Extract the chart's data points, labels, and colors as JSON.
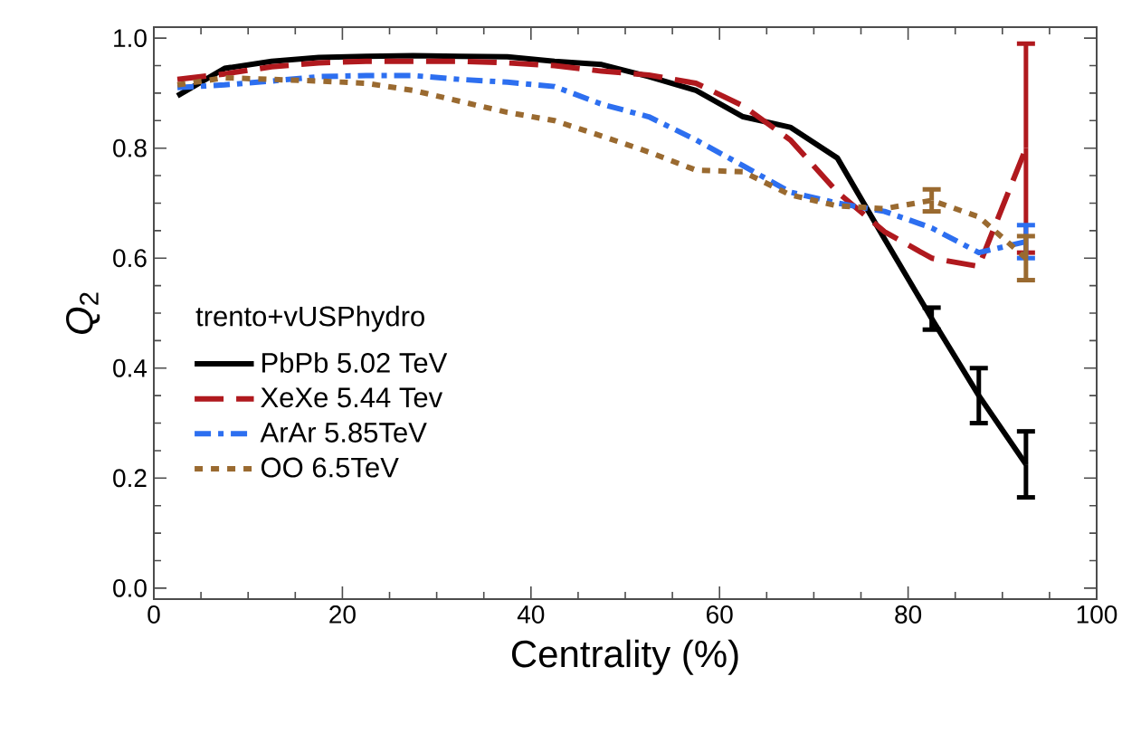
{
  "chart_data": {
    "type": "line",
    "xlabel": "Centrality (%)",
    "ylabel": "*Q*$_{2}$",
    "legend_title": "trento+vUSPhydro",
    "x": [
      2.5,
      7.5,
      12.5,
      17.5,
      22.5,
      27.5,
      32.5,
      37.5,
      42.5,
      47.5,
      52.5,
      57.5,
      62.5,
      67.5,
      72.5,
      77.5,
      82.5,
      87.5,
      92.5
    ],
    "series": [
      {
        "name": "PbPb 5.02 TeV",
        "color": "#000000",
        "line_style": "solid",
        "values": [
          0.895,
          0.945,
          0.958,
          0.965,
          0.967,
          0.968,
          0.967,
          0.966,
          0.958,
          0.952,
          0.93,
          0.905,
          0.857,
          0.838,
          0.782,
          0.635,
          0.49,
          0.35,
          0.225
        ],
        "errors": [
          null,
          null,
          null,
          null,
          null,
          null,
          null,
          null,
          null,
          null,
          null,
          null,
          null,
          null,
          null,
          null,
          0.02,
          0.05,
          0.06
        ]
      },
      {
        "name": "XeXe 5.44 Tev",
        "color": "#b0191e",
        "line_style": "dashed",
        "values": [
          0.925,
          0.935,
          0.948,
          0.955,
          0.958,
          0.958,
          0.958,
          0.955,
          0.95,
          0.94,
          0.933,
          0.918,
          0.877,
          0.815,
          0.72,
          0.648,
          0.6,
          0.585,
          0.8
        ],
        "errors": [
          null,
          null,
          null,
          null,
          null,
          null,
          null,
          null,
          null,
          null,
          null,
          null,
          null,
          null,
          null,
          null,
          null,
          null,
          [
            0.61,
            0.99
          ]
        ]
      },
      {
        "name": "ArAr 5.85TeV",
        "color": "#2d6ff0",
        "line_style": "dashdot",
        "values": [
          0.91,
          0.915,
          0.922,
          0.93,
          0.932,
          0.932,
          0.925,
          0.92,
          0.912,
          0.88,
          0.857,
          0.815,
          0.768,
          0.72,
          0.7,
          0.685,
          0.655,
          0.61,
          0.63
        ],
        "errors": [
          null,
          null,
          null,
          null,
          null,
          null,
          null,
          null,
          null,
          null,
          null,
          null,
          null,
          null,
          null,
          null,
          null,
          null,
          0.03
        ]
      },
      {
        "name": "OO 6.5TeV",
        "color": "#9a6a30",
        "line_style": "dotted",
        "values": [
          0.915,
          0.928,
          0.925,
          0.922,
          0.918,
          0.905,
          0.885,
          0.865,
          0.85,
          0.822,
          0.793,
          0.76,
          0.757,
          0.715,
          0.695,
          0.69,
          0.705,
          0.675,
          0.6
        ],
        "errors": [
          null,
          null,
          null,
          null,
          null,
          null,
          null,
          null,
          null,
          null,
          null,
          null,
          null,
          null,
          null,
          null,
          0.02,
          null,
          [
            0.56,
            0.64
          ]
        ]
      }
    ],
    "xlim": [
      0,
      100
    ],
    "ylim": [
      -0.02,
      1.02
    ],
    "xticks": [
      0,
      20,
      40,
      60,
      80,
      100
    ],
    "yticks": [
      {
        "value": 0,
        "label": "0.0"
      },
      {
        "value": 0.2,
        "label": "0.2"
      },
      {
        "value": 0.4,
        "label": "0.4"
      },
      {
        "value": 0.6,
        "label": "0.6"
      },
      {
        "value": 0.8,
        "label": "0.8"
      },
      {
        "value": 1.0,
        "label": "1.0"
      }
    ],
    "legend": "left",
    "grid": false
  }
}
